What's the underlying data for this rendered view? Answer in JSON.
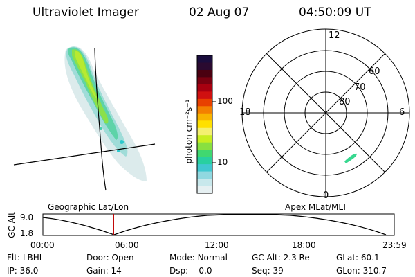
{
  "header": {
    "instrument": "Ultraviolet Imager",
    "date": "02 Aug 07",
    "time": "04:50:09  UT"
  },
  "colorbar": {
    "label": "photon cm⁻²s⁻¹",
    "ticks": [
      "100",
      "10"
    ],
    "colors": [
      "#1a0d3d",
      "#2a0a30",
      "#4a0010",
      "#7a0010",
      "#a80010",
      "#d01010",
      "#e84000",
      "#f38000",
      "#f8b400",
      "#ffe000",
      "#f4f070",
      "#c8ee20",
      "#88e040",
      "#40d870",
      "#28d0a0",
      "#40c8d0",
      "#90d8e0",
      "#c8e8ec",
      "#e6f0f2"
    ]
  },
  "polar": {
    "mlt_labels": {
      "top": "12",
      "left": "18",
      "right": "6",
      "bottom": "0"
    },
    "lat_labels": [
      "60",
      "70",
      "80"
    ]
  },
  "timeline": {
    "ylabel": "GC Alt",
    "yticks": [
      "9.0",
      "1.8"
    ],
    "left_label": "Geographic Lat/Lon",
    "right_label": "Apex  MLat/MLT",
    "xticks": [
      "00:00",
      "06:00",
      "12:00",
      "18:00",
      "23:59"
    ],
    "marker_fraction": 0.2015,
    "marker_color": "#c00000"
  },
  "status": {
    "row1": [
      {
        "k": "Flt:",
        "v": "LBHL"
      },
      {
        "k": "Door:",
        "v": "Open"
      },
      {
        "k": "Mode:",
        "v": "Normal"
      },
      {
        "k": "GC Alt:",
        "v": "2.3 Re"
      },
      {
        "k": "GLat:",
        "v": "60.1"
      }
    ],
    "row2": [
      {
        "k": "IP:",
        "v": "36.0"
      },
      {
        "k": "Gain:",
        "v": "14"
      },
      {
        "k": "Dsp:",
        "v": "0.0"
      },
      {
        "k": "Seq:",
        "v": "39"
      },
      {
        "k": "GLon:",
        "v": "310.7"
      }
    ]
  }
}
